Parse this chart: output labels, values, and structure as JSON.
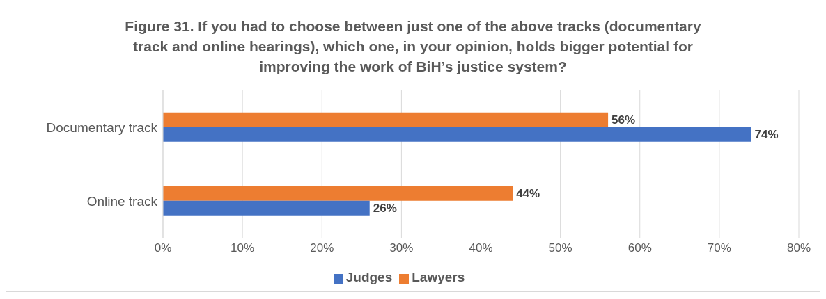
{
  "chart_data": {
    "type": "bar",
    "orientation": "horizontal",
    "title": "Figure 31. If you had to choose between just one of the above tracks (documentary track and online hearings), which one, in your opinion, holds bigger potential for improving the work of BiH’s justice system?",
    "categories": [
      "Documentary track",
      "Online track"
    ],
    "series": [
      {
        "name": "Lawyers",
        "color": "#ed7d31",
        "values": [
          56,
          44
        ],
        "value_labels": [
          "56%",
          "44%"
        ]
      },
      {
        "name": "Judges",
        "color": "#4472c4",
        "values": [
          74,
          26
        ],
        "value_labels": [
          "74%",
          "26%"
        ]
      }
    ],
    "xlim": [
      0,
      80
    ],
    "xticks": [
      {
        "value": 0,
        "label": "0%"
      },
      {
        "value": 10,
        "label": "10%"
      },
      {
        "value": 20,
        "label": "20%"
      },
      {
        "value": 30,
        "label": "30%"
      },
      {
        "value": 40,
        "label": "40%"
      },
      {
        "value": 50,
        "label": "50%"
      },
      {
        "value": 60,
        "label": "60%"
      },
      {
        "value": 70,
        "label": "70%"
      },
      {
        "value": 80,
        "label": "80%"
      }
    ],
    "grid": "x",
    "legend": "bottom"
  }
}
